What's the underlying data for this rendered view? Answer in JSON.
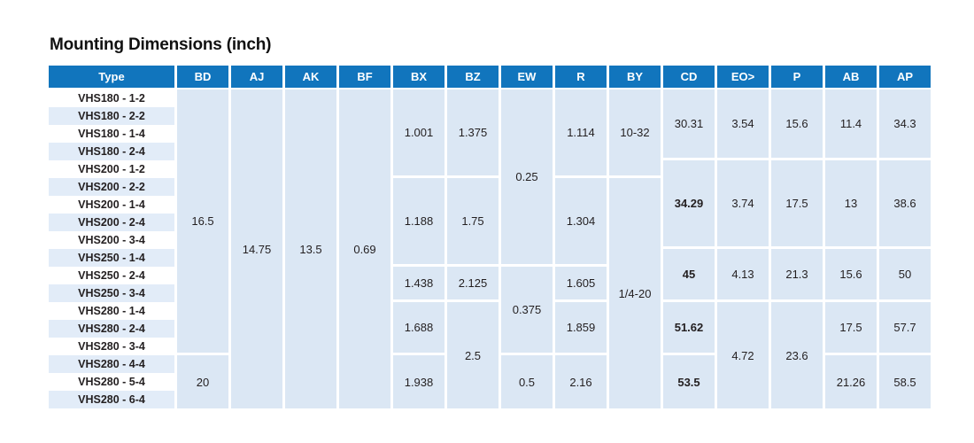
{
  "title": "Mounting Dimensions (inch)",
  "colors": {
    "header_bg": "#1175bd",
    "header_text": "#ffffff",
    "cell_bg": "#dbe7f4",
    "stripe_bg": "#e2ecf8",
    "text": "#231f20"
  },
  "table": {
    "header": [
      "Type",
      "BD",
      "AJ",
      "AK",
      "BF",
      "BX",
      "BZ",
      "EW",
      "R",
      "BY",
      "CD",
      "EO>",
      "P",
      "AB",
      "AP"
    ],
    "row_types": [
      "VHS180 - 1-2",
      "VHS180 - 2-2",
      "VHS180 - 1-4",
      "VHS180 - 2-4",
      "VHS200 - 1-2",
      "VHS200 - 2-2",
      "VHS200 - 1-4",
      "VHS200 - 2-4",
      "VHS200 - 3-4",
      "VHS250 - 1-4",
      "VHS250 - 2-4",
      "VHS250 - 3-4",
      "VHS280 - 1-4",
      "VHS280 - 2-4",
      "VHS280 - 3-4",
      "VHS280 - 4-4",
      "VHS280 - 5-4",
      "VHS280 - 6-4"
    ],
    "columns": [
      {
        "key": "BD",
        "segments": [
          {
            "value": "16.5",
            "rows": [
              1,
              15
            ]
          },
          {
            "value": "20",
            "rows": [
              16,
              18
            ]
          }
        ]
      },
      {
        "key": "AJ",
        "segments": [
          {
            "value": "14.75",
            "rows": [
              1,
              18
            ]
          }
        ]
      },
      {
        "key": "AK",
        "segments": [
          {
            "value": "13.5",
            "rows": [
              1,
              18
            ]
          }
        ]
      },
      {
        "key": "BF",
        "segments": [
          {
            "value": "0.69",
            "rows": [
              1,
              18
            ]
          }
        ]
      },
      {
        "key": "BX",
        "segments": [
          {
            "value": "1.001",
            "rows": [
              1,
              5
            ]
          },
          {
            "value": "1.188",
            "rows": [
              6,
              10
            ]
          },
          {
            "value": "1.438",
            "rows": [
              11,
              12
            ]
          },
          {
            "value": "1.688",
            "rows": [
              13,
              15
            ]
          },
          {
            "value": "1.938",
            "rows": [
              16,
              18
            ]
          }
        ]
      },
      {
        "key": "BZ",
        "segments": [
          {
            "value": "1.375",
            "rows": [
              1,
              5
            ]
          },
          {
            "value": "1.75",
            "rows": [
              6,
              10
            ]
          },
          {
            "value": "2.125",
            "rows": [
              11,
              12
            ]
          },
          {
            "value": "2.5",
            "rows": [
              13,
              18
            ]
          }
        ]
      },
      {
        "key": "EW",
        "segments": [
          {
            "value": "0.25",
            "rows": [
              1,
              10
            ]
          },
          {
            "value": "0.375",
            "rows": [
              11,
              15
            ]
          },
          {
            "value": "0.5",
            "rows": [
              16,
              18
            ]
          }
        ]
      },
      {
        "key": "R",
        "segments": [
          {
            "value": "1.114",
            "rows": [
              1,
              5
            ]
          },
          {
            "value": "1.304",
            "rows": [
              6,
              10
            ]
          },
          {
            "value": "1.605",
            "rows": [
              11,
              12
            ]
          },
          {
            "value": "1.859",
            "rows": [
              13,
              15
            ]
          },
          {
            "value": "2.16",
            "rows": [
              16,
              18
            ]
          }
        ]
      },
      {
        "key": "BY",
        "segments": [
          {
            "value": "10-32",
            "rows": [
              1,
              5
            ]
          },
          {
            "value": "1/4-20",
            "rows": [
              6,
              18
            ]
          }
        ]
      },
      {
        "key": "CD",
        "segments": [
          {
            "value": "30.31",
            "rows": [
              1,
              4
            ]
          },
          {
            "value": "34.29",
            "rows": [
              5,
              9
            ],
            "bold": true
          },
          {
            "value": "45",
            "rows": [
              10,
              12
            ],
            "bold": true
          },
          {
            "value": "51.62",
            "rows": [
              13,
              15
            ],
            "bold": true
          },
          {
            "value": "53.5",
            "rows": [
              16,
              18
            ],
            "bold": true
          }
        ]
      },
      {
        "key": "EO>",
        "segments": [
          {
            "value": "3.54",
            "rows": [
              1,
              4
            ]
          },
          {
            "value": "3.74",
            "rows": [
              5,
              9
            ]
          },
          {
            "value": "4.13",
            "rows": [
              10,
              12
            ]
          },
          {
            "value": "4.72",
            "rows": [
              13,
              18
            ]
          }
        ]
      },
      {
        "key": "P",
        "segments": [
          {
            "value": "15.6",
            "rows": [
              1,
              4
            ]
          },
          {
            "value": "17.5",
            "rows": [
              5,
              9
            ]
          },
          {
            "value": "21.3",
            "rows": [
              10,
              12
            ]
          },
          {
            "value": "23.6",
            "rows": [
              13,
              18
            ]
          }
        ]
      },
      {
        "key": "AB",
        "segments": [
          {
            "value": "11.4",
            "rows": [
              1,
              4
            ]
          },
          {
            "value": "13",
            "rows": [
              5,
              9
            ]
          },
          {
            "value": "15.6",
            "rows": [
              10,
              12
            ]
          },
          {
            "value": "17.5",
            "rows": [
              13,
              15
            ]
          },
          {
            "value": "21.26",
            "rows": [
              16,
              18
            ]
          }
        ]
      },
      {
        "key": "AP",
        "segments": [
          {
            "value": "34.3",
            "rows": [
              1,
              4
            ]
          },
          {
            "value": "38.6",
            "rows": [
              5,
              9
            ]
          },
          {
            "value": "50",
            "rows": [
              10,
              12
            ]
          },
          {
            "value": "57.7",
            "rows": [
              13,
              15
            ]
          },
          {
            "value": "58.5",
            "rows": [
              16,
              18
            ]
          }
        ]
      }
    ]
  }
}
